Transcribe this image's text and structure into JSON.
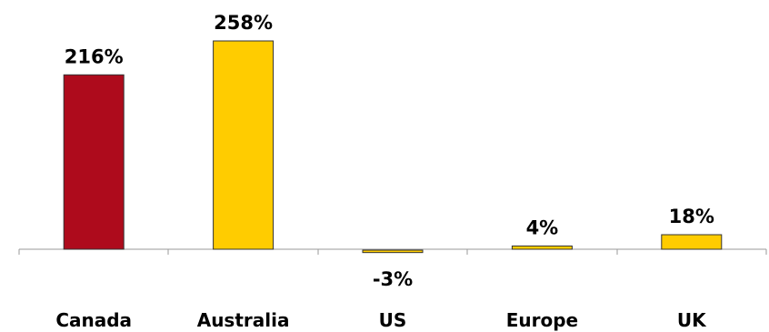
{
  "chart_data": {
    "type": "bar",
    "categories": [
      "Canada",
      "Australia",
      "US",
      "Europe",
      "UK"
    ],
    "values": [
      216,
      258,
      -3,
      4,
      18
    ],
    "value_labels": [
      "216%",
      "258%",
      "-3%",
      "4%",
      "18%"
    ],
    "colors": [
      "#AE0B1C",
      "#FFCC00",
      "#FFCC00",
      "#FFCC00",
      "#FFCC00"
    ],
    "title": "",
    "xlabel": "",
    "ylabel": "",
    "ylim": [
      -10,
      270
    ],
    "grid": false,
    "legend": "none"
  }
}
